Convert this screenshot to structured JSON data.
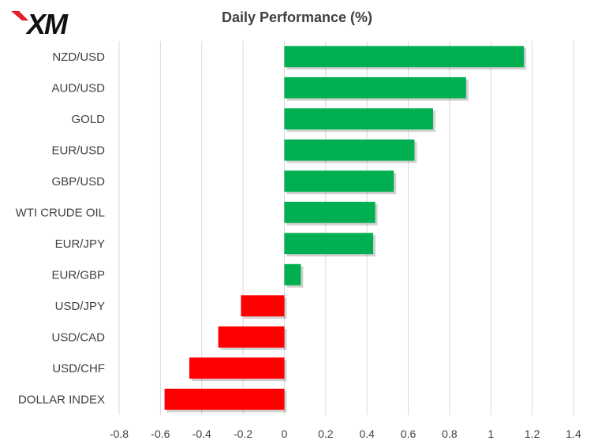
{
  "logo": {
    "text": "XM",
    "accent_color": "#e31e24"
  },
  "chart_data": {
    "type": "bar",
    "orientation": "horizontal",
    "title": "Daily Performance  (%)",
    "xlabel": "",
    "ylabel": "",
    "xlim": [
      -0.8,
      1.4
    ],
    "x_ticks": [
      -0.8,
      -0.6,
      -0.4,
      -0.2,
      0,
      0.2,
      0.4,
      0.6,
      0.8,
      1,
      1.2,
      1.4
    ],
    "x_tick_labels": [
      "-0.8",
      "-0.6",
      "-0.4",
      "-0.2",
      "0",
      "0.2",
      "0.4",
      "0.6",
      "0.8",
      "1",
      "1.2",
      "1.4"
    ],
    "grid": "vertical",
    "legend": "none",
    "categories": [
      "NZD/USD",
      "AUD/USD",
      "GOLD",
      "EUR/USD",
      "GBP/USD",
      "WTI CRUDE OIL",
      "EUR/JPY",
      "EUR/GBP",
      "USD/JPY",
      "USD/CAD",
      "USD/CHF",
      "DOLLAR INDEX"
    ],
    "values": [
      1.16,
      0.88,
      0.72,
      0.63,
      0.53,
      0.44,
      0.43,
      0.08,
      -0.21,
      -0.32,
      -0.46,
      -0.58
    ],
    "colors": {
      "positive": "#00b050",
      "negative": "#ff0000",
      "grid": "#d9d9d9"
    }
  }
}
